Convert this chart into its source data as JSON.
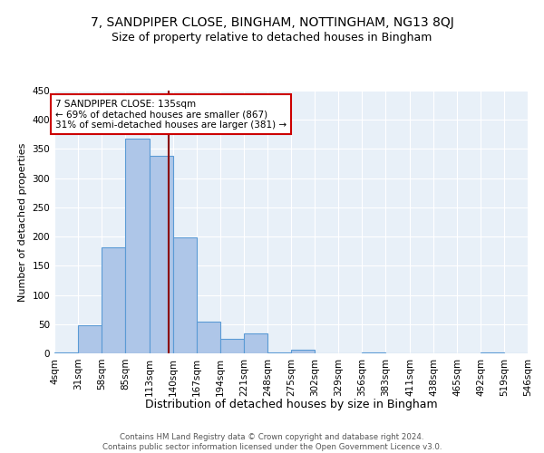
{
  "title": "7, SANDPIPER CLOSE, BINGHAM, NOTTINGHAM, NG13 8QJ",
  "subtitle": "Size of property relative to detached houses in Bingham",
  "xlabel": "Distribution of detached houses by size in Bingham",
  "ylabel": "Number of detached properties",
  "bar_edges": [
    4,
    31,
    58,
    85,
    113,
    140,
    167,
    194,
    221,
    248,
    275,
    302,
    329,
    356,
    383,
    411,
    438,
    465,
    492,
    519,
    546
  ],
  "bar_heights": [
    2,
    48,
    181,
    367,
    338,
    199,
    54,
    25,
    34,
    2,
    6,
    0,
    0,
    2,
    0,
    0,
    0,
    0,
    2,
    0
  ],
  "bar_color": "#aec6e8",
  "bar_edgecolor": "#5b9bd5",
  "bar_linewidth": 0.8,
  "property_line_x": 135,
  "property_line_color": "#8b0000",
  "annotation_text": "7 SANDPIPER CLOSE: 135sqm\n← 69% of detached houses are smaller (867)\n31% of semi-detached houses are larger (381) →",
  "annotation_box_color": "white",
  "annotation_box_edgecolor": "#cc0000",
  "annotation_fontsize": 7.5,
  "ylim": [
    0,
    450
  ],
  "yticks": [
    0,
    50,
    100,
    150,
    200,
    250,
    300,
    350,
    400,
    450
  ],
  "background_color": "#e8f0f8",
  "grid_color": "white",
  "footer": "Contains HM Land Registry data © Crown copyright and database right 2024.\nContains public sector information licensed under the Open Government Licence v3.0.",
  "title_fontsize": 10,
  "subtitle_fontsize": 9,
  "xlabel_fontsize": 9,
  "ylabel_fontsize": 8,
  "tick_labelsize": 7.5
}
